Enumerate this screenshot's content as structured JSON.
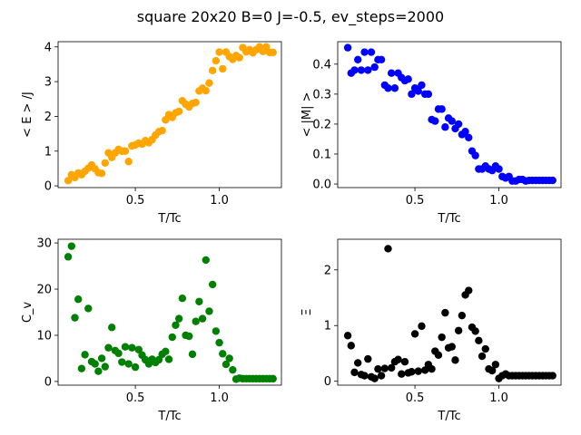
{
  "suptitle": "square 20x20  B=0 J=-0.5, ev_steps=2000",
  "chart_data": [
    {
      "type": "scatter",
      "xlabel": "T/Tc",
      "ylabel": "< E > /J",
      "color": "#FFA500",
      "xlim": [
        0.04,
        1.37
      ],
      "ylim": [
        -0.05,
        4.15
      ],
      "xticks": [
        0.5,
        1.0
      ],
      "xtick_labels": [
        "0.5",
        "1.0"
      ],
      "yticks": [
        0,
        1,
        2,
        3,
        4
      ],
      "ytick_labels": [
        "0",
        "1",
        "2",
        "3",
        "4"
      ],
      "grid": false,
      "x": [
        0.1,
        0.12,
        0.14,
        0.16,
        0.18,
        0.2,
        0.22,
        0.24,
        0.26,
        0.28,
        0.3,
        0.32,
        0.34,
        0.36,
        0.38,
        0.4,
        0.42,
        0.44,
        0.46,
        0.48,
        0.5,
        0.52,
        0.54,
        0.56,
        0.58,
        0.6,
        0.62,
        0.64,
        0.66,
        0.68,
        0.7,
        0.72,
        0.74,
        0.76,
        0.78,
        0.8,
        0.82,
        0.84,
        0.86,
        0.88,
        0.9,
        0.92,
        0.94,
        0.96,
        0.98,
        1.0,
        1.02,
        1.04,
        1.06,
        1.08,
        1.1,
        1.12,
        1.14,
        1.16,
        1.18,
        1.2,
        1.22,
        1.24,
        1.26,
        1.28,
        1.3,
        1.32
      ],
      "y": [
        0.15,
        0.32,
        0.24,
        0.37,
        0.32,
        0.42,
        0.51,
        0.6,
        0.49,
        0.38,
        0.36,
        0.66,
        0.95,
        0.82,
        0.95,
        1.05,
        1.0,
        1.0,
        0.7,
        1.15,
        1.18,
        1.23,
        1.2,
        1.3,
        1.24,
        1.33,
        1.46,
        1.56,
        1.59,
        1.9,
        2.05,
        1.97,
        2.1,
        2.14,
        2.45,
        2.35,
        2.27,
        2.37,
        2.4,
        2.73,
        2.81,
        2.74,
        2.96,
        3.32,
        3.6,
        3.85,
        3.37,
        3.85,
        3.72,
        3.64,
        3.75,
        3.69,
        3.98,
        3.86,
        3.92,
        3.83,
        3.92,
        4.0,
        3.87,
        4.0,
        3.84,
        3.84
      ]
    },
    {
      "type": "scatter",
      "xlabel": "T/Tc",
      "ylabel": "< |M| >",
      "color": "#0000FF",
      "xlim": [
        0.04,
        1.37
      ],
      "ylim": [
        -0.012,
        0.475
      ],
      "xticks": [
        0.5,
        1.0
      ],
      "xtick_labels": [
        "0.5",
        "1.0"
      ],
      "yticks": [
        0.0,
        0.1,
        0.2,
        0.3,
        0.4
      ],
      "ytick_labels": [
        "0.0",
        "0.1",
        "0.2",
        "0.3",
        "0.4"
      ],
      "grid": false,
      "x": [
        0.1,
        0.12,
        0.14,
        0.16,
        0.18,
        0.2,
        0.22,
        0.24,
        0.26,
        0.28,
        0.3,
        0.32,
        0.34,
        0.36,
        0.38,
        0.4,
        0.42,
        0.44,
        0.46,
        0.48,
        0.5,
        0.52,
        0.54,
        0.56,
        0.58,
        0.6,
        0.62,
        0.64,
        0.66,
        0.68,
        0.7,
        0.72,
        0.74,
        0.76,
        0.78,
        0.8,
        0.82,
        0.84,
        0.86,
        0.88,
        0.9,
        0.92,
        0.94,
        0.96,
        0.98,
        1.0,
        1.02,
        1.04,
        1.06,
        1.08,
        1.1,
        1.12,
        1.14,
        1.16,
        1.18,
        1.2,
        1.22,
        1.24,
        1.26,
        1.28,
        1.3,
        1.32
      ],
      "y": [
        0.455,
        0.37,
        0.38,
        0.415,
        0.38,
        0.44,
        0.38,
        0.44,
        0.39,
        0.415,
        0.415,
        0.33,
        0.32,
        0.37,
        0.32,
        0.37,
        0.355,
        0.345,
        0.35,
        0.3,
        0.32,
        0.31,
        0.33,
        0.3,
        0.3,
        0.215,
        0.21,
        0.25,
        0.25,
        0.19,
        0.22,
        0.21,
        0.185,
        0.2,
        0.165,
        0.175,
        0.155,
        0.11,
        0.095,
        0.05,
        0.05,
        0.06,
        0.05,
        0.045,
        0.06,
        0.05,
        0.025,
        0.02,
        0.025,
        0.01,
        0.01,
        0.015,
        0.015,
        0.01,
        0.012,
        0.012,
        0.012,
        0.012,
        0.012,
        0.012,
        0.012,
        0.012
      ]
    },
    {
      "type": "scatter",
      "xlabel": "T/Tc",
      "ylabel": "C_v",
      "color": "#008000",
      "xlim": [
        0.04,
        1.37
      ],
      "ylim": [
        -0.8,
        30.8
      ],
      "xticks": [
        0.5,
        1.0
      ],
      "xtick_labels": [
        "0.5",
        "1.0"
      ],
      "yticks": [
        0,
        10,
        20,
        30
      ],
      "ytick_labels": [
        "0",
        "10",
        "20",
        "30"
      ],
      "grid": false,
      "x": [
        0.1,
        0.12,
        0.14,
        0.16,
        0.18,
        0.2,
        0.22,
        0.24,
        0.26,
        0.28,
        0.3,
        0.32,
        0.34,
        0.36,
        0.38,
        0.4,
        0.42,
        0.44,
        0.46,
        0.48,
        0.5,
        0.52,
        0.54,
        0.56,
        0.58,
        0.6,
        0.62,
        0.64,
        0.66,
        0.68,
        0.7,
        0.72,
        0.74,
        0.76,
        0.78,
        0.8,
        0.82,
        0.84,
        0.86,
        0.88,
        0.9,
        0.92,
        0.94,
        0.96,
        0.98,
        1.0,
        1.02,
        1.04,
        1.06,
        1.08,
        1.1,
        1.12,
        1.14,
        1.16,
        1.18,
        1.2,
        1.22,
        1.24,
        1.26,
        1.28,
        1.3,
        1.32
      ],
      "y": [
        27,
        29.3,
        13.8,
        17.8,
        2.8,
        5.8,
        15.8,
        4.3,
        3.8,
        2.2,
        5,
        3.2,
        7.3,
        11.7,
        6.7,
        6.1,
        4.2,
        7.5,
        3.8,
        7.3,
        3.1,
        6.9,
        5.7,
        4.7,
        3.8,
        4.8,
        4.1,
        4.7,
        5.9,
        6.5,
        4.8,
        9.6,
        12.2,
        13.6,
        18,
        10,
        9.8,
        5.9,
        13,
        17.3,
        13.6,
        26.3,
        15.2,
        21,
        10.9,
        8.4,
        6,
        3.7,
        5,
        2.5,
        0.5,
        0.7,
        0.6,
        0.6,
        0.6,
        0.6,
        0.6,
        0.6,
        0.6,
        0.6,
        0.6,
        0.6
      ]
    },
    {
      "type": "scatter",
      "xlabel": "T/Tc",
      "ylabel": "Ξ",
      "color": "#000000",
      "xlim": [
        0.04,
        1.37
      ],
      "ylim": [
        -0.07,
        2.55
      ],
      "xticks": [
        0.5,
        1.0
      ],
      "xtick_labels": [
        "0.5",
        "1.0"
      ],
      "yticks": [
        0,
        1,
        2
      ],
      "ytick_labels": [
        "0",
        "1",
        "2"
      ],
      "grid": false,
      "x": [
        0.1,
        0.12,
        0.14,
        0.16,
        0.18,
        0.2,
        0.22,
        0.24,
        0.26,
        0.28,
        0.3,
        0.32,
        0.34,
        0.36,
        0.38,
        0.4,
        0.42,
        0.44,
        0.46,
        0.48,
        0.5,
        0.52,
        0.54,
        0.56,
        0.58,
        0.6,
        0.62,
        0.64,
        0.66,
        0.68,
        0.7,
        0.72,
        0.74,
        0.76,
        0.78,
        0.8,
        0.82,
        0.84,
        0.86,
        0.88,
        0.9,
        0.92,
        0.94,
        0.96,
        0.98,
        1.0,
        1.02,
        1.04,
        1.06,
        1.08,
        1.1,
        1.12,
        1.14,
        1.16,
        1.18,
        1.2,
        1.22,
        1.24,
        1.26,
        1.28,
        1.3,
        1.32
      ],
      "y": [
        0.82,
        0.64,
        0.16,
        0.33,
        0.12,
        0.1,
        0.4,
        0.08,
        0.05,
        0.22,
        0.1,
        0.23,
        2.38,
        0.24,
        0.35,
        0.39,
        0.13,
        0.35,
        0.15,
        0.17,
        0.85,
        0.18,
        0.99,
        0.2,
        0.3,
        0.22,
        0.54,
        0.47,
        0.79,
        1.23,
        0.6,
        0.62,
        0.38,
        0.91,
        1.18,
        1.55,
        1.63,
        0.97,
        0.9,
        0.73,
        0.45,
        0.58,
        0.22,
        0.19,
        0.3,
        0.05,
        0.1,
        0.13,
        0.1,
        0.1,
        0.1,
        0.1,
        0.1,
        0.1,
        0.1,
        0.1,
        0.1,
        0.1,
        0.1,
        0.1,
        0.1,
        0.1
      ]
    }
  ]
}
